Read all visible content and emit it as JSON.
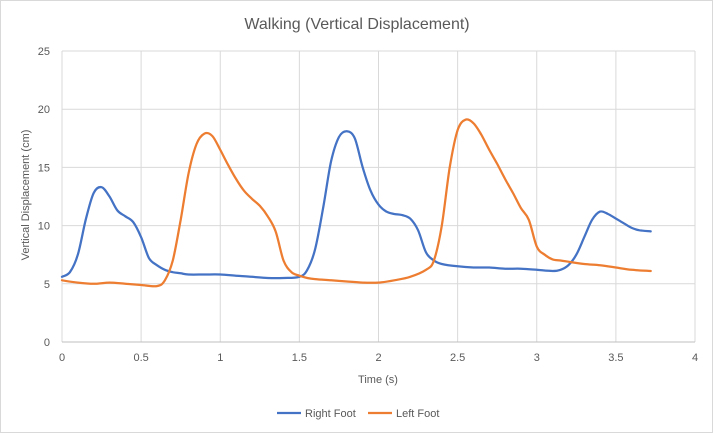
{
  "chart_data": {
    "type": "line",
    "title": "Walking (Vertical Displacement)",
    "xlabel": "Time (s)",
    "ylabel": "Vertical Displacement (cm)",
    "xlim": [
      0,
      4
    ],
    "ylim": [
      0,
      25
    ],
    "xticks": [
      0,
      0.5,
      1,
      1.5,
      2,
      2.5,
      3,
      3.5,
      4
    ],
    "xtick_labels": [
      "0",
      "0.5",
      "1",
      "1.5",
      "2",
      "2.5",
      "3",
      "3.5",
      "4"
    ],
    "yticks": [
      0,
      5,
      10,
      15,
      20,
      25
    ],
    "ytick_labels": [
      "0",
      "5",
      "10",
      "15",
      "20",
      "25"
    ],
    "grid": true,
    "legend_position": "bottom",
    "series": [
      {
        "name": "Right Foot",
        "color": "#4472c4",
        "x": [
          0,
          0.05,
          0.1,
          0.15,
          0.2,
          0.25,
          0.3,
          0.35,
          0.4,
          0.45,
          0.5,
          0.55,
          0.6,
          0.65,
          0.7,
          0.75,
          0.8,
          0.9,
          1.0,
          1.1,
          1.2,
          1.3,
          1.4,
          1.5,
          1.55,
          1.6,
          1.65,
          1.7,
          1.75,
          1.8,
          1.85,
          1.9,
          1.95,
          2.0,
          2.05,
          2.1,
          2.15,
          2.2,
          2.25,
          2.3,
          2.35,
          2.4,
          2.5,
          2.6,
          2.7,
          2.8,
          2.9,
          3.0,
          3.1,
          3.15,
          3.2,
          3.25,
          3.3,
          3.35,
          3.4,
          3.45,
          3.5,
          3.55,
          3.6,
          3.65,
          3.72
        ],
        "y": [
          5.6,
          6.0,
          7.5,
          10.5,
          12.8,
          13.3,
          12.5,
          11.3,
          10.8,
          10.3,
          9.0,
          7.2,
          6.6,
          6.2,
          6.0,
          5.9,
          5.8,
          5.8,
          5.8,
          5.7,
          5.6,
          5.5,
          5.5,
          5.6,
          6.2,
          8.0,
          11.5,
          15.5,
          17.6,
          18.1,
          17.5,
          15.0,
          13.0,
          11.8,
          11.2,
          11.0,
          10.9,
          10.6,
          9.6,
          7.7,
          7.0,
          6.7,
          6.5,
          6.4,
          6.4,
          6.3,
          6.3,
          6.2,
          6.1,
          6.2,
          6.6,
          7.5,
          9.0,
          10.5,
          11.2,
          11.0,
          10.6,
          10.2,
          9.8,
          9.6,
          9.5
        ]
      },
      {
        "name": "Left Foot",
        "color": "#ed7d31",
        "x": [
          0,
          0.1,
          0.2,
          0.3,
          0.4,
          0.5,
          0.6,
          0.65,
          0.7,
          0.75,
          0.8,
          0.85,
          0.9,
          0.95,
          1.0,
          1.05,
          1.1,
          1.15,
          1.2,
          1.25,
          1.3,
          1.35,
          1.4,
          1.45,
          1.5,
          1.55,
          1.6,
          1.7,
          1.8,
          1.9,
          2.0,
          2.1,
          2.2,
          2.3,
          2.35,
          2.4,
          2.45,
          2.5,
          2.55,
          2.6,
          2.65,
          2.7,
          2.75,
          2.8,
          2.85,
          2.9,
          2.95,
          3.0,
          3.05,
          3.1,
          3.15,
          3.2,
          3.3,
          3.4,
          3.5,
          3.6,
          3.72
        ],
        "y": [
          5.3,
          5.1,
          5.0,
          5.1,
          5.0,
          4.9,
          4.8,
          5.3,
          7.0,
          10.5,
          14.5,
          17.0,
          17.9,
          17.7,
          16.5,
          15.2,
          14.0,
          13.0,
          12.3,
          11.7,
          10.8,
          9.5,
          7.0,
          6.0,
          5.7,
          5.5,
          5.4,
          5.3,
          5.2,
          5.1,
          5.1,
          5.3,
          5.6,
          6.2,
          7.0,
          10.0,
          15.0,
          18.2,
          19.1,
          18.8,
          17.8,
          16.5,
          15.3,
          14.0,
          12.8,
          11.5,
          10.5,
          8.2,
          7.5,
          7.1,
          7.0,
          6.9,
          6.7,
          6.6,
          6.4,
          6.2,
          6.1
        ]
      }
    ]
  }
}
